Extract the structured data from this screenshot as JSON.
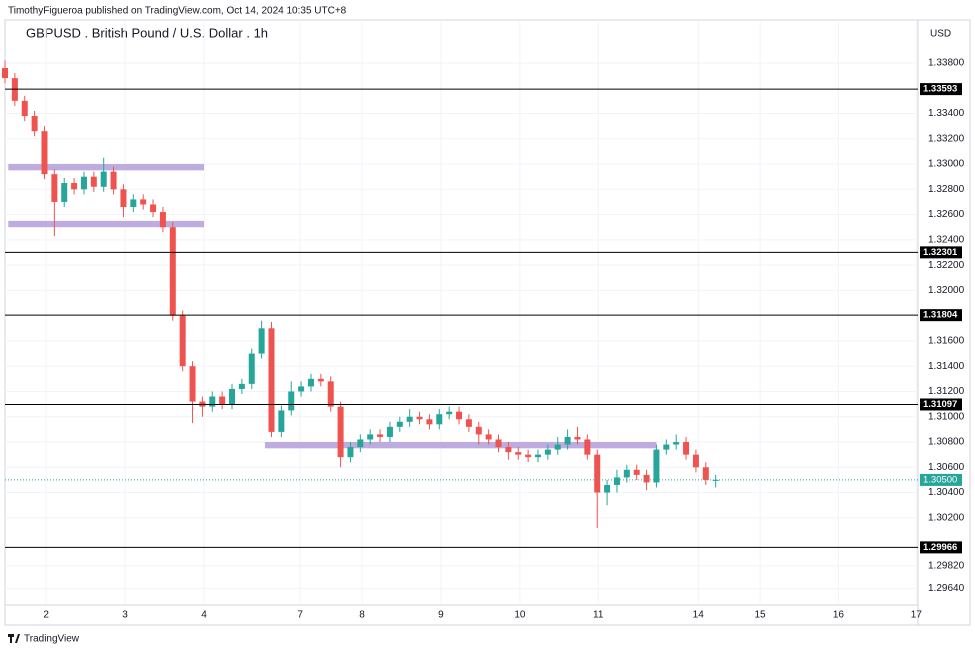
{
  "header": {
    "published": "TimothyFigueroa published on TradingView.com, Oct 14, 2024 10:35 UTC+8",
    "footer": "TradingView"
  },
  "chart_data": {
    "type": "candlestick",
    "title": "GBPUSD . British Pound / U.S. Dollar . 1h",
    "y_axis_label": "USD",
    "up_color": "#26a69a",
    "down_color": "#ef5350",
    "grid": true,
    "xlim": [
      0,
      277.5
    ],
    "ylim": [
      1.2951,
      1.3414
    ],
    "xticks": [
      {
        "value": 12.5,
        "label": "2"
      },
      {
        "value": 36.5,
        "label": "3"
      },
      {
        "value": 60.5,
        "label": "4"
      },
      {
        "value": 89.7,
        "label": "7"
      },
      {
        "value": 108.5,
        "label": "8"
      },
      {
        "value": 132.5,
        "label": "9"
      },
      {
        "value": 156.5,
        "label": "10"
      },
      {
        "value": 180.3,
        "label": "11"
      },
      {
        "value": 210.7,
        "label": "14"
      },
      {
        "value": 229.5,
        "label": "15"
      },
      {
        "value": 253.3,
        "label": "16"
      },
      {
        "value": 277,
        "label": "17"
      }
    ],
    "yticks": [
      {
        "value": 1.338,
        "label": "1.33800"
      },
      {
        "value": 1.334,
        "label": "1.33400"
      },
      {
        "value": 1.332,
        "label": "1.33200"
      },
      {
        "value": 1.33,
        "label": "1.33000"
      },
      {
        "value": 1.328,
        "label": "1.32800"
      },
      {
        "value": 1.326,
        "label": "1.32600"
      },
      {
        "value": 1.324,
        "label": "1.32400"
      },
      {
        "value": 1.322,
        "label": "1.32200"
      },
      {
        "value": 1.32,
        "label": "1.32000"
      },
      {
        "value": 1.316,
        "label": "1.31600"
      },
      {
        "value": 1.314,
        "label": "1.31400"
      },
      {
        "value": 1.312,
        "label": "1.31200"
      },
      {
        "value": 1.31,
        "label": "1.31000"
      },
      {
        "value": 1.308,
        "label": "1.30800"
      },
      {
        "value": 1.306,
        "label": "1.30600"
      },
      {
        "value": 1.304,
        "label": "1.30400"
      },
      {
        "value": 1.302,
        "label": "1.30200"
      },
      {
        "value": 1.2982,
        "label": "1.29820"
      },
      {
        "value": 1.2964,
        "label": "1.29640"
      }
    ],
    "levels": [
      1.33593,
      1.32301,
      1.31804,
      1.31097,
      1.29966
    ],
    "level_color": "#000000",
    "last_price": {
      "value": 1.305,
      "label": "1.30500"
    },
    "last_color": "#26a69a",
    "zones": [
      {
        "from": 1,
        "to": 60.5,
        "low": 1.3295,
        "high": 1.33
      },
      {
        "from": 1,
        "to": 60.5,
        "low": 1.325,
        "high": 1.3255
      },
      {
        "from": 79,
        "to": 198,
        "low": 1.3075,
        "high": 1.308
      }
    ],
    "zone_color": "#b39ddb",
    "x": [
      0,
      3,
      6,
      9,
      12,
      15,
      18,
      21,
      24,
      27,
      30,
      33,
      36,
      39,
      42,
      45,
      48,
      51,
      54,
      57,
      60,
      63,
      66,
      69,
      72,
      75,
      78,
      81,
      84,
      87,
      90,
      93,
      96,
      99,
      102,
      105,
      108,
      111,
      114,
      117,
      120,
      123,
      126,
      129,
      132,
      135,
      138,
      141,
      144,
      147,
      150,
      153,
      156,
      159,
      162,
      165,
      168,
      171,
      174,
      177,
      180,
      183,
      186,
      189,
      192,
      195,
      198,
      201,
      204,
      207,
      210,
      213,
      216
    ],
    "open": [
      1.3376,
      1.3368,
      1.335,
      1.3338,
      1.3326,
      1.3292,
      1.327,
      1.3285,
      1.328,
      1.329,
      1.3282,
      1.3294,
      1.328,
      1.3266,
      1.3272,
      1.3268,
      1.3262,
      1.325,
      1.318,
      1.314,
      1.3112,
      1.3108,
      1.3116,
      1.311,
      1.3122,
      1.3126,
      1.315,
      1.317,
      1.3088,
      1.3105,
      1.312,
      1.3124,
      1.313,
      1.3128,
      1.3108,
      1.3068,
      1.3076,
      1.3082,
      1.3086,
      1.3084,
      1.3092,
      1.3096,
      1.31,
      1.3098,
      1.3094,
      1.3102,
      1.3104,
      1.3098,
      1.3092,
      1.3086,
      1.3082,
      1.3076,
      1.3072,
      1.307,
      1.3068,
      1.307,
      1.3074,
      1.3078,
      1.3084,
      1.3082,
      1.307,
      1.304,
      1.3046,
      1.3052,
      1.3058,
      1.3054,
      1.3048,
      1.3074,
      1.3078,
      1.308,
      1.307,
      1.306,
      1.305
    ],
    "high": [
      1.3382,
      1.3372,
      1.3354,
      1.3342,
      1.333,
      1.3296,
      1.3289,
      1.3289,
      1.3294,
      1.3294,
      1.3305,
      1.3298,
      1.3284,
      1.3276,
      1.3276,
      1.3272,
      1.3266,
      1.3254,
      1.3184,
      1.3144,
      1.3116,
      1.312,
      1.312,
      1.3126,
      1.313,
      1.3154,
      1.3176,
      1.3175,
      1.3109,
      1.3128,
      1.3128,
      1.3134,
      1.3134,
      1.3132,
      1.3112,
      1.308,
      1.3086,
      1.309,
      1.309,
      1.3096,
      1.31,
      1.3106,
      1.3104,
      1.3102,
      1.3106,
      1.3108,
      1.3108,
      1.3102,
      1.3096,
      1.309,
      1.3086,
      1.308,
      1.3076,
      1.3074,
      1.3074,
      1.3078,
      1.3084,
      1.309,
      1.3092,
      1.3086,
      1.3074,
      1.305,
      1.3058,
      1.3062,
      1.3062,
      1.3058,
      1.3078,
      1.3082,
      1.3086,
      1.3084,
      1.3074,
      1.3064,
      1.3054
    ],
    "low": [
      1.3364,
      1.3346,
      1.3334,
      1.3322,
      1.3288,
      1.3243,
      1.3266,
      1.3276,
      1.3276,
      1.3278,
      1.3278,
      1.3276,
      1.3258,
      1.3262,
      1.3264,
      1.3258,
      1.3246,
      1.3176,
      1.3136,
      1.3095,
      1.31,
      1.3104,
      1.3106,
      1.3106,
      1.3118,
      1.3122,
      1.3146,
      1.3084,
      1.3084,
      1.3101,
      1.3116,
      1.312,
      1.3124,
      1.3104,
      1.306,
      1.3064,
      1.3072,
      1.3078,
      1.308,
      1.308,
      1.3088,
      1.3092,
      1.3094,
      1.309,
      1.309,
      1.3098,
      1.3094,
      1.3088,
      1.3078,
      1.3078,
      1.3072,
      1.3066,
      1.3066,
      1.3064,
      1.3064,
      1.3066,
      1.307,
      1.3074,
      1.3078,
      1.3066,
      1.3012,
      1.303,
      1.304,
      1.3048,
      1.305,
      1.3042,
      1.3044,
      1.307,
      1.3074,
      1.3066,
      1.3056,
      1.3046,
      1.3044
    ],
    "close": [
      1.3368,
      1.335,
      1.3338,
      1.3326,
      1.3292,
      1.327,
      1.3285,
      1.328,
      1.329,
      1.3282,
      1.3294,
      1.328,
      1.3266,
      1.3272,
      1.3268,
      1.3262,
      1.325,
      1.318,
      1.314,
      1.3112,
      1.3108,
      1.3116,
      1.311,
      1.3122,
      1.3126,
      1.315,
      1.317,
      1.3088,
      1.3105,
      1.312,
      1.3124,
      1.313,
      1.3128,
      1.3108,
      1.3068,
      1.3076,
      1.3082,
      1.3086,
      1.3084,
      1.3092,
      1.3096,
      1.31,
      1.3098,
      1.3094,
      1.3102,
      1.3104,
      1.3098,
      1.3092,
      1.3086,
      1.3082,
      1.3076,
      1.3072,
      1.307,
      1.3068,
      1.307,
      1.3074,
      1.3078,
      1.3084,
      1.3082,
      1.307,
      1.304,
      1.3046,
      1.3052,
      1.3058,
      1.3054,
      1.3048,
      1.3074,
      1.3078,
      1.308,
      1.307,
      1.306,
      1.305,
      1.305
    ]
  }
}
